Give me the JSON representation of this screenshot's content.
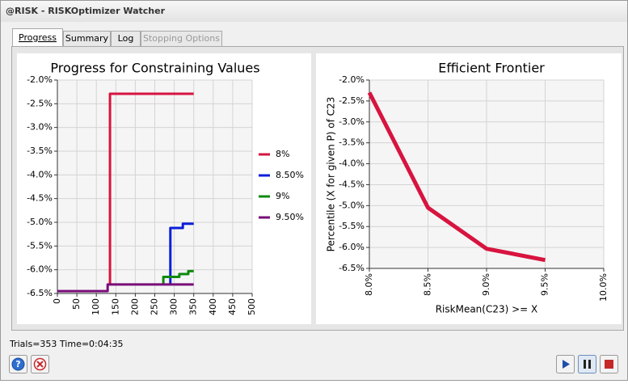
{
  "window": {
    "title": "@RISK - RISKOptimizer Watcher"
  },
  "tabs": [
    {
      "label": "Progress",
      "state": "active"
    },
    {
      "label": "Summary",
      "state": "normal"
    },
    {
      "label": "Log",
      "state": "normal"
    },
    {
      "label": "Stopping Options",
      "state": "disabled"
    }
  ],
  "chart_data": [
    {
      "type": "line",
      "title": "Progress for Constraining Values",
      "xlim": [
        0,
        500
      ],
      "xticks": [
        0,
        50,
        100,
        150,
        200,
        250,
        300,
        350,
        400,
        450,
        500
      ],
      "ylim": [
        -6.5,
        -2.0
      ],
      "yticks": [
        {
          "value": -2.0,
          "label": "-2.0%"
        },
        {
          "value": -2.5,
          "label": "-2.5%"
        },
        {
          "value": -3.0,
          "label": "-3.0%"
        },
        {
          "value": -3.5,
          "label": "-3.5%"
        },
        {
          "value": -4.0,
          "label": "-4.0%"
        },
        {
          "value": -4.5,
          "label": "-4.5%"
        },
        {
          "value": -5.0,
          "label": "-5.0%"
        },
        {
          "value": -5.5,
          "label": "-5.5%"
        },
        {
          "value": -6.0,
          "label": "-6.0%"
        },
        {
          "value": -6.5,
          "label": "-6.5%"
        }
      ],
      "grid": true,
      "legend": "right",
      "series": [
        {
          "name": "8%",
          "color": "#d7143f",
          "x": [
            135,
            135,
            350
          ],
          "values": [
            -6.31,
            -2.29,
            -2.29
          ]
        },
        {
          "name": "8.50%",
          "color": "#0a1fd8",
          "x": [
            290,
            290,
            322,
            322,
            350
          ],
          "values": [
            -6.31,
            -5.12,
            -5.12,
            -5.03,
            -5.03
          ]
        },
        {
          "name": "9%",
          "color": "#0f8a0f",
          "x": [
            272,
            272,
            313,
            313,
            336,
            336,
            350
          ],
          "values": [
            -6.31,
            -6.15,
            -6.15,
            -6.09,
            -6.09,
            -6.03,
            -6.03
          ]
        },
        {
          "name": "9.50%",
          "color": "#7a0d79",
          "x": [
            0,
            129,
            129,
            350
          ],
          "values": [
            -6.45,
            -6.45,
            -6.31,
            -6.31
          ]
        }
      ]
    },
    {
      "type": "line",
      "title": "Efficient Frontier",
      "x_label": "RiskMean(C23) >= X",
      "y_label": "Percentile (X for given P) of C23",
      "xlim": [
        8.0,
        10.0
      ],
      "xticks": [
        {
          "value": 8.0,
          "label": "8.0%"
        },
        {
          "value": 8.5,
          "label": "8.5%"
        },
        {
          "value": 9.0,
          "label": "9.0%"
        },
        {
          "value": 9.5,
          "label": "9.5%"
        },
        {
          "value": 10.0,
          "label": "10.0%"
        }
      ],
      "ylim": [
        -6.5,
        -2.0
      ],
      "yticks": [
        {
          "value": -2.0,
          "label": "-2.0%"
        },
        {
          "value": -2.5,
          "label": "-2.5%"
        },
        {
          "value": -3.0,
          "label": "-3.0%"
        },
        {
          "value": -3.5,
          "label": "-3.5%"
        },
        {
          "value": -4.0,
          "label": "-4.0%"
        },
        {
          "value": -4.5,
          "label": "-4.5%"
        },
        {
          "value": -5.0,
          "label": "-5.0%"
        },
        {
          "value": -5.5,
          "label": "-5.5%"
        },
        {
          "value": -6.0,
          "label": "-6.0%"
        },
        {
          "value": -6.5,
          "label": "-6.5%"
        }
      ],
      "grid": true,
      "series": [
        {
          "color": "#d7143f",
          "x": [
            8.0,
            8.5,
            9.0,
            9.5
          ],
          "values": [
            -2.3,
            -5.05,
            -6.03,
            -6.3
          ]
        }
      ]
    }
  ],
  "status": "Trials=353 Time=0:04:35"
}
